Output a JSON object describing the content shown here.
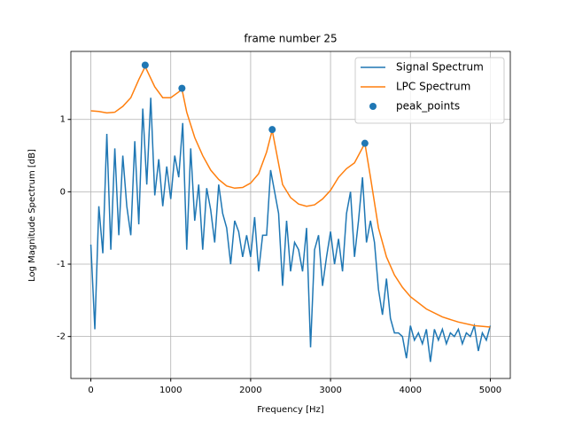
{
  "chart_data": {
    "type": "line",
    "title": "frame number 25",
    "x_label": "Frequency [Hz]",
    "y_label": "Log Magnitude Spectrum [dB]",
    "xlim": [
      -250,
      5250
    ],
    "ylim": [
      -2.58,
      1.94
    ],
    "xticks": [
      0,
      1000,
      2000,
      3000,
      4000,
      5000
    ],
    "yticks": [
      -2,
      -1,
      0,
      1
    ],
    "grid": true,
    "legend": "upper right",
    "series": [
      {
        "name": "Signal Spectrum",
        "type": "line",
        "color": "#1f77b4",
        "x": [
          0,
          50,
          100,
          150,
          200,
          250,
          300,
          350,
          400,
          450,
          500,
          550,
          600,
          650,
          700,
          750,
          800,
          850,
          900,
          950,
          1000,
          1050,
          1100,
          1150,
          1200,
          1250,
          1300,
          1350,
          1400,
          1450,
          1500,
          1550,
          1600,
          1650,
          1700,
          1750,
          1800,
          1850,
          1900,
          1950,
          2000,
          2050,
          2100,
          2150,
          2200,
          2250,
          2300,
          2350,
          2400,
          2450,
          2500,
          2550,
          2600,
          2650,
          2700,
          2750,
          2800,
          2850,
          2900,
          2950,
          3000,
          3050,
          3100,
          3150,
          3200,
          3250,
          3300,
          3350,
          3400,
          3450,
          3500,
          3550,
          3600,
          3650,
          3700,
          3750,
          3800,
          3850,
          3900,
          3950,
          4000,
          4050,
          4100,
          4150,
          4200,
          4250,
          4300,
          4350,
          4400,
          4450,
          4500,
          4550,
          4600,
          4650,
          4700,
          4750,
          4800,
          4850,
          4900,
          4950,
          5000
        ],
        "values": [
          -0.73,
          -1.9,
          -0.2,
          -0.85,
          0.8,
          -0.8,
          0.6,
          -0.6,
          0.5,
          -0.2,
          -0.6,
          0.7,
          -0.45,
          1.15,
          0.1,
          1.3,
          -0.05,
          0.45,
          -0.2,
          0.35,
          -0.1,
          0.5,
          0.2,
          0.95,
          -0.8,
          0.6,
          -0.4,
          0.1,
          -0.8,
          0.05,
          -0.25,
          -0.7,
          0.1,
          -0.3,
          -0.5,
          -1.0,
          -0.4,
          -0.55,
          -0.9,
          -0.6,
          -0.9,
          -0.35,
          -1.1,
          -0.6,
          -0.6,
          0.3,
          0.0,
          -0.3,
          -1.3,
          -0.4,
          -1.1,
          -0.7,
          -0.8,
          -1.1,
          -0.5,
          -2.15,
          -0.8,
          -0.6,
          -1.3,
          -0.9,
          -0.55,
          -1.0,
          -0.65,
          -1.1,
          -0.3,
          0.0,
          -0.9,
          -0.4,
          0.2,
          -0.7,
          -0.4,
          -0.7,
          -1.35,
          -1.7,
          -1.2,
          -1.75,
          -1.95,
          -1.95,
          -2.0,
          -2.3,
          -1.85,
          -2.05,
          -1.95,
          -2.1,
          -1.9,
          -2.35,
          -1.9,
          -2.05,
          -1.9,
          -2.1,
          -1.95,
          -2.0,
          -1.9,
          -2.1,
          -1.95,
          -2.0,
          -1.85,
          -2.2,
          -1.95,
          -2.05,
          -1.85
        ]
      },
      {
        "name": "LPC Spectrum",
        "type": "line",
        "color": "#ff7f0e",
        "x": [
          0,
          100,
          200,
          300,
          400,
          500,
          600,
          680,
          800,
          900,
          1000,
          1100,
          1140,
          1200,
          1300,
          1400,
          1500,
          1600,
          1700,
          1800,
          1900,
          2000,
          2100,
          2200,
          2270,
          2400,
          2500,
          2600,
          2700,
          2800,
          2900,
          3000,
          3100,
          3200,
          3300,
          3430,
          3500,
          3600,
          3700,
          3800,
          3900,
          4000,
          4200,
          4400,
          4600,
          4800,
          5000
        ],
        "values": [
          1.12,
          1.11,
          1.09,
          1.1,
          1.18,
          1.3,
          1.55,
          1.73,
          1.45,
          1.3,
          1.3,
          1.38,
          1.42,
          1.1,
          0.75,
          0.5,
          0.3,
          0.17,
          0.08,
          0.05,
          0.06,
          0.12,
          0.25,
          0.55,
          0.85,
          0.1,
          -0.08,
          -0.17,
          -0.2,
          -0.18,
          -0.1,
          0.02,
          0.2,
          0.32,
          0.4,
          0.67,
          0.2,
          -0.5,
          -0.9,
          -1.15,
          -1.32,
          -1.45,
          -1.62,
          -1.73,
          -1.8,
          -1.85,
          -1.87
        ]
      },
      {
        "name": "peak_points",
        "type": "scatter",
        "color": "#1f77b4",
        "x": [
          680,
          1140,
          2270,
          3430
        ],
        "values": [
          1.75,
          1.43,
          0.86,
          0.67
        ]
      }
    ]
  }
}
